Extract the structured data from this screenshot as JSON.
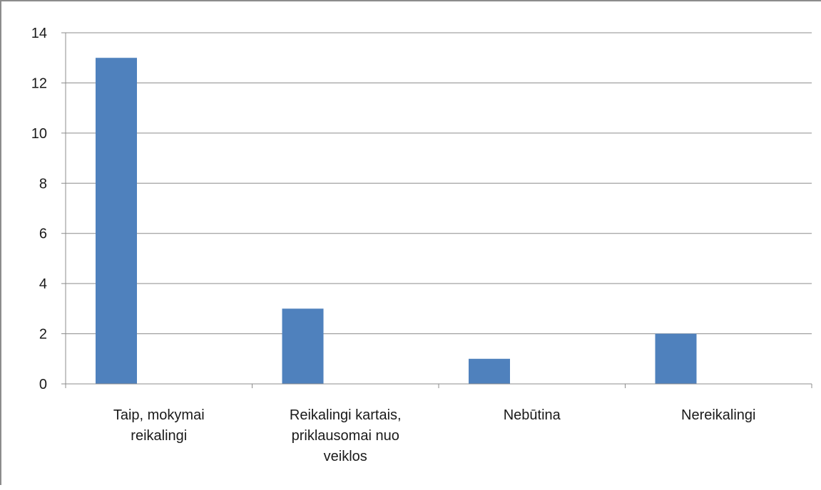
{
  "chart_data": {
    "type": "bar",
    "categories": [
      [
        "Taip, mokymai",
        "reikalingi"
      ],
      [
        "Reikalingi kartais,",
        "priklausomai nuo",
        "veiklos"
      ],
      [
        "Nebūtina"
      ],
      [
        "Nereikalingi"
      ]
    ],
    "values": [
      13,
      3,
      1,
      2
    ],
    "ylim": [
      0,
      14
    ],
    "yticks": [
      0,
      2,
      4,
      6,
      8,
      10,
      12,
      14
    ],
    "grid": true,
    "legend": "none",
    "bar_color": "#4f81bd",
    "grid_color": "#8c8c8c",
    "title": "",
    "xlabel": "",
    "ylabel": ""
  }
}
